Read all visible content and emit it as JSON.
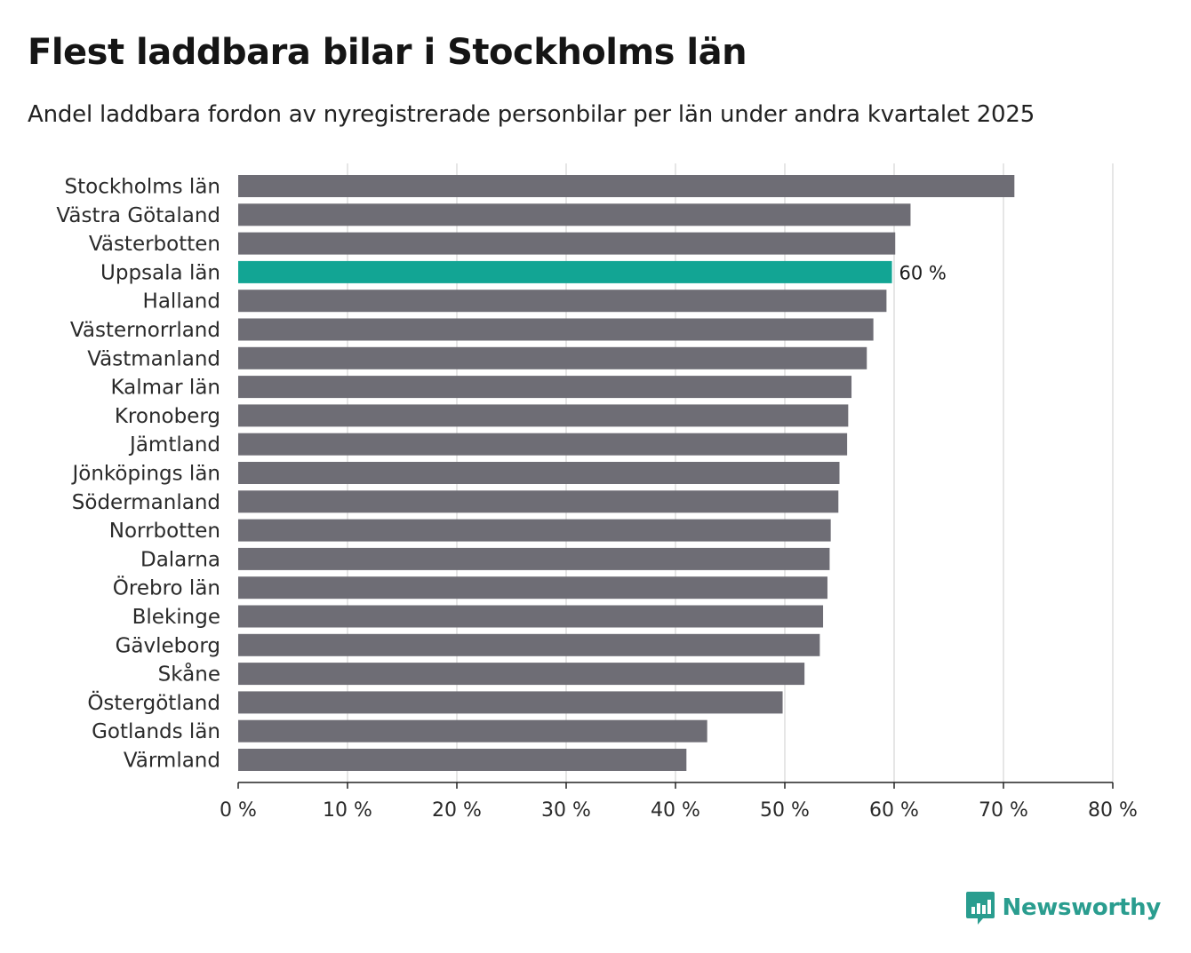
{
  "title": "Flest laddbara bilar i Stockholms län",
  "subtitle": "Andel laddbara fordon av nyregistrerade personbilar per län under andra kvartalet 2025",
  "brand": {
    "name": "Newsworthy",
    "icon": "bar-chart-logo-icon"
  },
  "colors": {
    "bar": "#6e6d75",
    "highlight": "#12a594",
    "grid": "#dddddd",
    "axis": "#222222",
    "brand": "#2a9d8f"
  },
  "chart_data": {
    "type": "bar",
    "orientation": "horizontal",
    "categories": [
      "Stockholms län",
      "Västra Götaland",
      "Västerbotten",
      "Uppsala län",
      "Halland",
      "Västernorrland",
      "Västmanland",
      "Kalmar län",
      "Kronoberg",
      "Jämtland",
      "Jönköpings län",
      "Södermanland",
      "Norrbotten",
      "Dalarna",
      "Örebro län",
      "Blekinge",
      "Gävleborg",
      "Skåne",
      "Östergötland",
      "Gotlands län",
      "Värmland"
    ],
    "values": [
      71.0,
      61.5,
      60.1,
      59.8,
      59.3,
      58.1,
      57.5,
      56.1,
      55.8,
      55.7,
      55.0,
      54.9,
      54.2,
      54.1,
      53.9,
      53.5,
      53.2,
      51.8,
      49.8,
      42.9,
      41.0
    ],
    "highlight_category": "Uppsala län",
    "highlight_label": "60 %",
    "xlim": [
      0,
      80
    ],
    "xticks": [
      0,
      10,
      20,
      30,
      40,
      50,
      60,
      70,
      80
    ],
    "xtick_labels": [
      "0 %",
      "10 %",
      "20 %",
      "30 %",
      "40 %",
      "50 %",
      "60 %",
      "70 %",
      "80 %"
    ],
    "grid": true
  }
}
